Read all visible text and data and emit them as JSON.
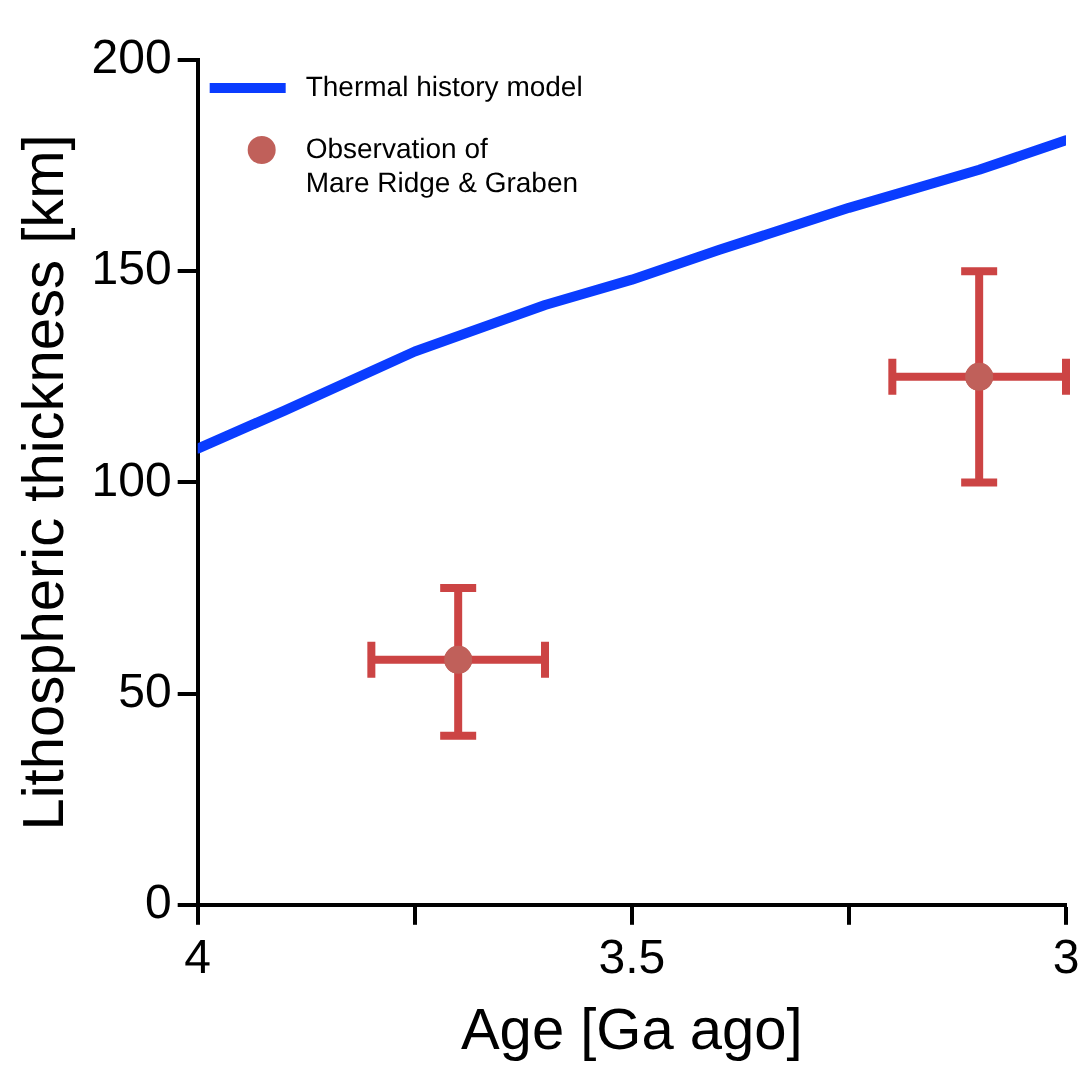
{
  "chart_data": {
    "type": "line",
    "xlabel": "Age [Ga ago]",
    "ylabel": "Lithospheric thickness [km]",
    "xlim": [
      4,
      3
    ],
    "xticks": [
      4,
      {
        "value": 3.75,
        "label": null
      },
      3.5,
      {
        "value": 3.25,
        "label": null
      },
      3
    ],
    "ylim": [
      0,
      200
    ],
    "yticks": [
      0,
      50,
      100,
      150,
      200
    ],
    "grid": false,
    "legend": "top left",
    "series": [
      {
        "name": "Thermal history model",
        "color": "#0a3cff",
        "marker": "none",
        "line_style": "solid",
        "x": [
          4,
          3.9,
          3.75,
          3.6,
          3.5,
          3.4,
          3.25,
          3.1,
          3
        ],
        "values": [
          108,
          117,
          131,
          142,
          148,
          155,
          165,
          174,
          181
        ]
      },
      {
        "name": "Observation of\nMare Ridge & Graben",
        "type": "scatter",
        "color": "#c0605a",
        "marker": "circle",
        "x": [
          3.7,
          3.1
        ],
        "values": [
          58,
          125
        ],
        "errors": [
          [
            40,
            75
          ],
          [
            100,
            150
          ]
        ],
        "xerrors": [
          0.1,
          0.1
        ]
      }
    ]
  }
}
